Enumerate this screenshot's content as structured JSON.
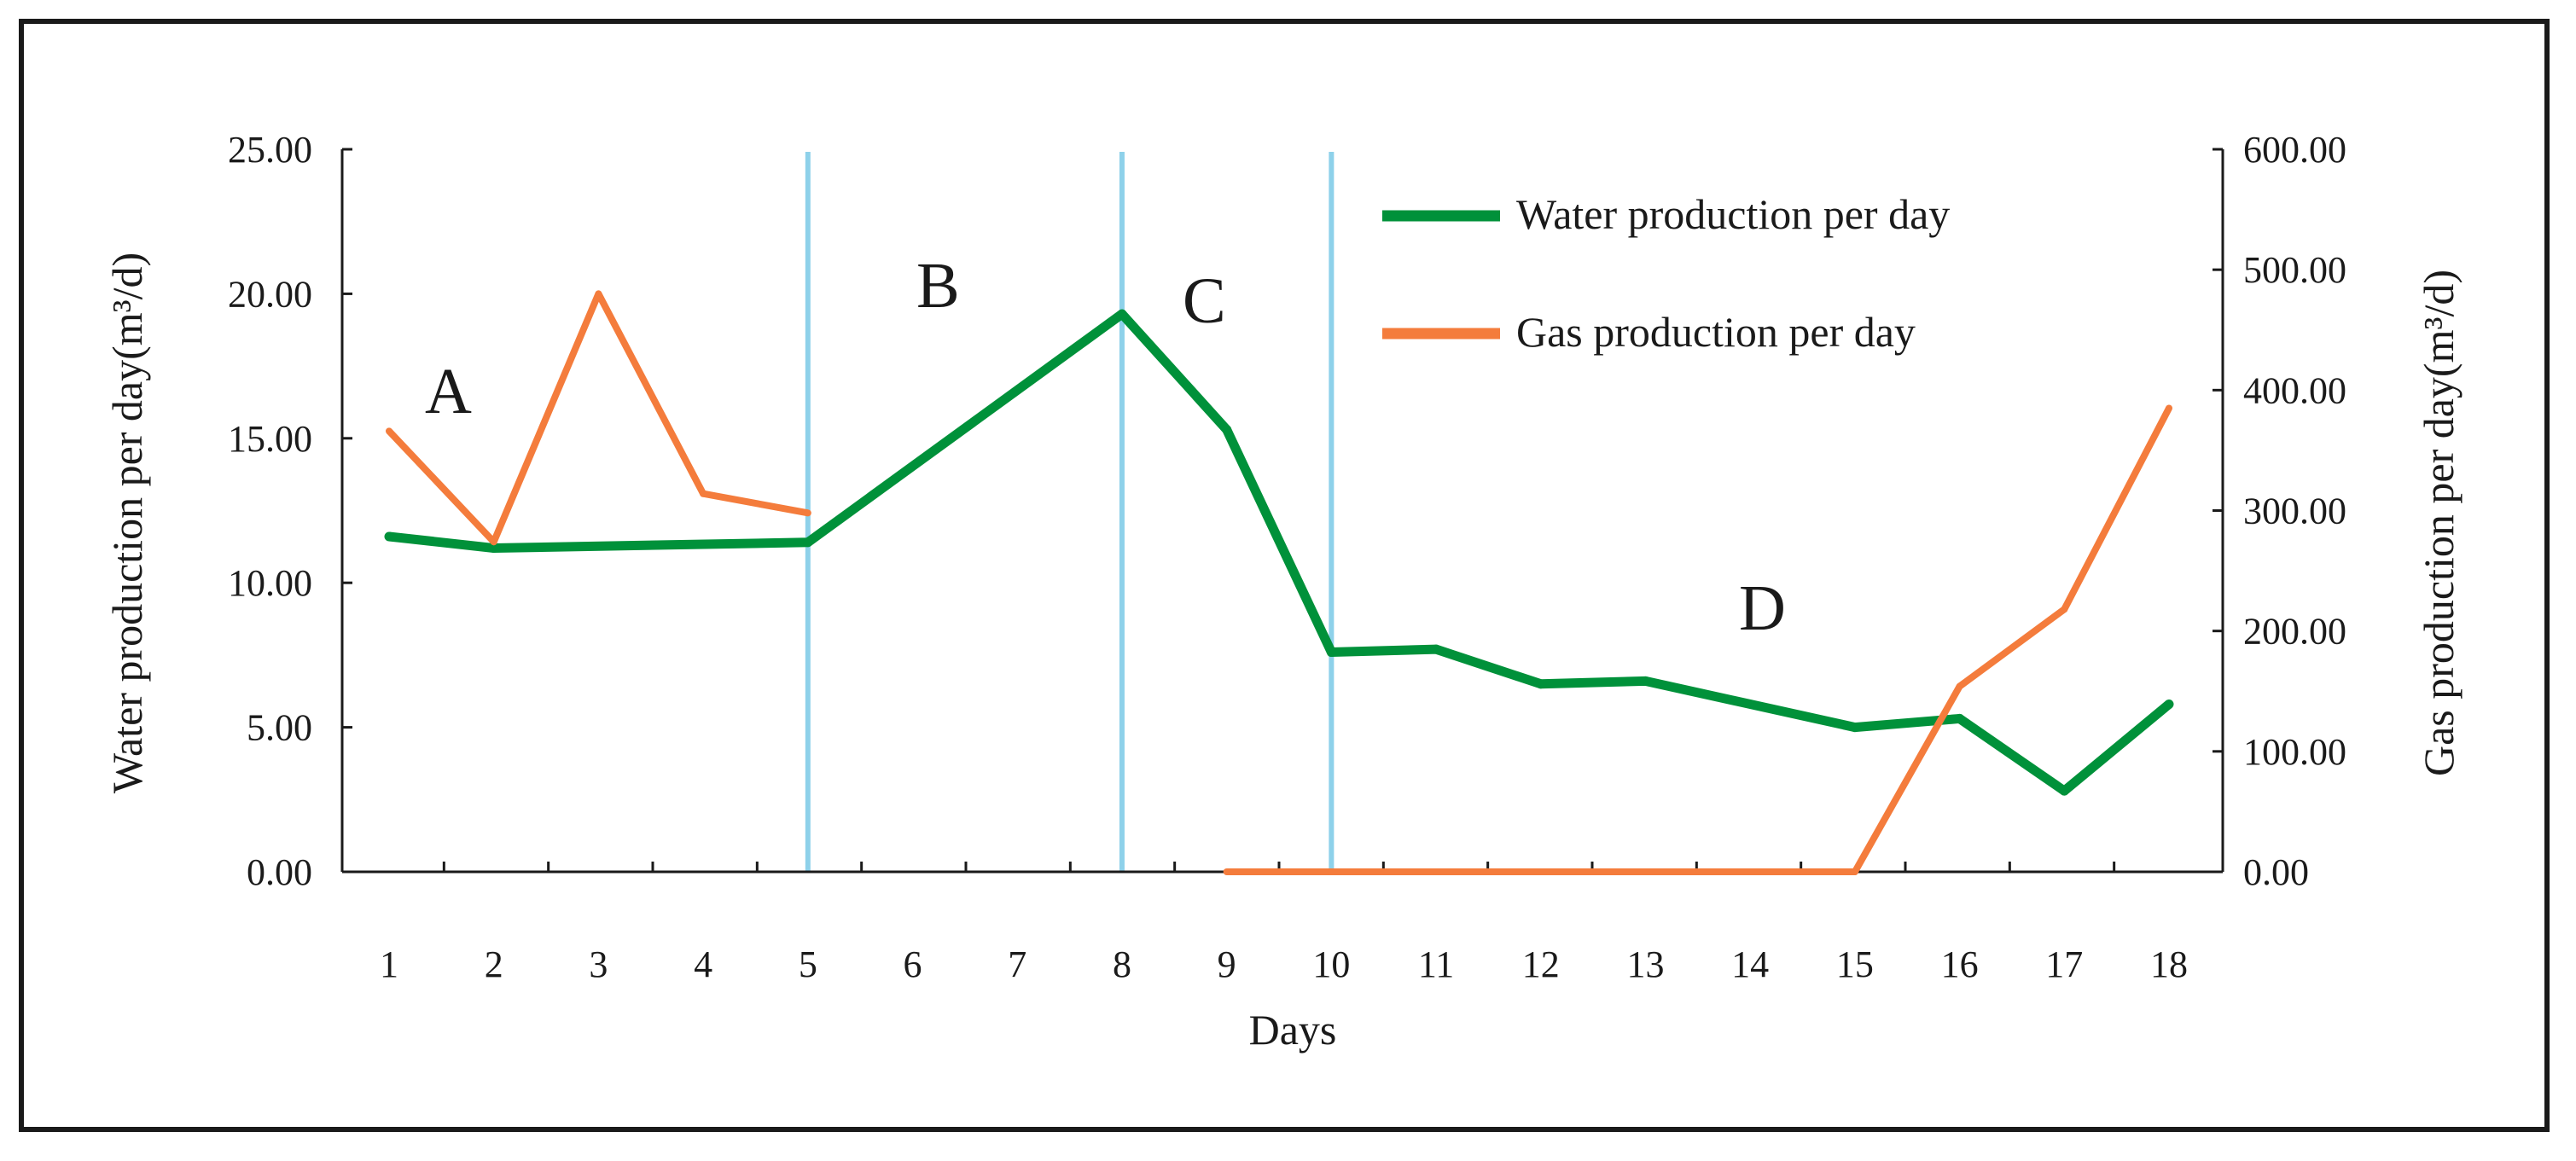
{
  "chart_data": {
    "type": "line",
    "title": "",
    "xlabel": "Days",
    "ylabel": "Water production per day(m³/d)",
    "y2label": "Gas production per day(m³/d)",
    "categories": [
      "1",
      "2",
      "3",
      "4",
      "5",
      "6",
      "7",
      "8",
      "9",
      "10",
      "11",
      "12",
      "13",
      "14",
      "15",
      "16",
      "17",
      "18"
    ],
    "ylim": [
      0,
      25
    ],
    "y2lim": [
      0,
      600
    ],
    "yticks": [
      "0.00",
      "5.00",
      "10.00",
      "15.00",
      "20.00",
      "25.00"
    ],
    "y2ticks": [
      "0.00",
      "100.00",
      "200.00",
      "300.00",
      "400.00",
      "500.00",
      "600.00"
    ],
    "grid": false,
    "legend_position": "top-right",
    "series": [
      {
        "name": "Water production per day",
        "axis": "left",
        "color": "#00913A",
        "x": [
          1,
          2,
          5,
          8,
          9,
          10,
          11,
          12,
          13,
          15,
          16,
          17,
          18
        ],
        "values": [
          11.6,
          11.2,
          11.4,
          19.3,
          15.3,
          7.6,
          7.7,
          6.5,
          6.6,
          5.0,
          5.3,
          2.8,
          5.8
        ]
      },
      {
        "name": "Gas production per day",
        "axis": "right",
        "color": "#F47C3C",
        "segments": [
          {
            "x": [
              1,
              2,
              3,
              4,
              5
            ],
            "values": [
              366,
              274,
              480,
              314,
              298
            ]
          },
          {
            "x": [
              9,
              10,
              11,
              12,
              13,
              14,
              15,
              16,
              17,
              18
            ],
            "values": [
              0,
              0,
              0,
              0,
              0,
              0,
              0,
              154,
              218,
              385
            ]
          }
        ]
      }
    ],
    "dividers": {
      "x": [
        5,
        8,
        10
      ],
      "color": "#8ED1EA"
    },
    "region_labels": [
      "A",
      "B",
      "C",
      "D"
    ]
  }
}
